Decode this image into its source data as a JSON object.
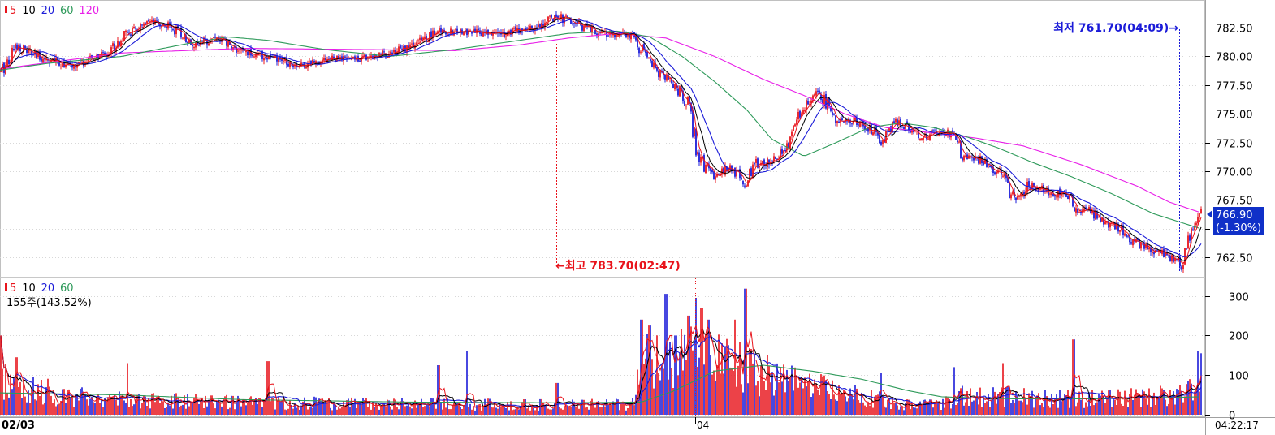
{
  "colors": {
    "up": "#e8141c",
    "down": "#1b1bd8",
    "ma5": "#e8141c",
    "ma10": "#000000",
    "ma20": "#1b1bd8",
    "ma60": "#2e9a5a",
    "ma120": "#e81ee8",
    "highlight_bg": "#1030c8",
    "grid": "#d8d8d8",
    "axis": "#a0a0a0"
  },
  "price_legend": [
    "5",
    "10",
    "20",
    "60",
    "120"
  ],
  "volume_legend": [
    "5",
    "10",
    "20",
    "60"
  ],
  "volume_info": "155주(143.52%)",
  "high_marker": "←최고 783.70(02:47)",
  "low_marker": "최저 761.70(04:09)→",
  "current_price": "766.90",
  "current_change": "(-1.30%)",
  "date_left": "02/03",
  "date_mid": "04",
  "time_right": "04:22:17",
  "chart_data": [
    {
      "type": "candlestick",
      "name": "price",
      "y_ticks": [
        "782.50",
        "780.00",
        "777.50",
        "775.00",
        "772.50",
        "770.00",
        "767.50",
        "765.00",
        "762.50"
      ],
      "ylim": [
        760.8,
        784.7
      ],
      "high": 783.7,
      "low": 761.7,
      "last": 766.9,
      "change_pct": -1.3,
      "anchors": [
        [
          0,
          778.5
        ],
        [
          20,
          781.0
        ],
        [
          45,
          780.0
        ],
        [
          90,
          779.1
        ],
        [
          130,
          780.2
        ],
        [
          155,
          781.9
        ],
        [
          185,
          782.9
        ],
        [
          210,
          782.6
        ],
        [
          240,
          781.0
        ],
        [
          265,
          781.7
        ],
        [
          290,
          780.6
        ],
        [
          330,
          779.9
        ],
        [
          370,
          779.2
        ],
        [
          400,
          779.8
        ],
        [
          440,
          779.8
        ],
        [
          480,
          780.3
        ],
        [
          510,
          781.0
        ],
        [
          540,
          782.2
        ],
        [
          580,
          782.1
        ],
        [
          620,
          782.0
        ],
        [
          660,
          782.6
        ],
        [
          685,
          783.5
        ],
        [
          710,
          782.8
        ],
        [
          740,
          782.0
        ],
        [
          780,
          781.8
        ],
        [
          795,
          780.0
        ],
        [
          810,
          778.5
        ],
        [
          830,
          777.6
        ],
        [
          848,
          775.5
        ],
        [
          862,
          771.0
        ],
        [
          880,
          769.5
        ],
        [
          900,
          770.4
        ],
        [
          918,
          768.8
        ],
        [
          930,
          770.5
        ],
        [
          950,
          771.0
        ],
        [
          968,
          771.8
        ],
        [
          980,
          774.0
        ],
        [
          1000,
          776.8
        ],
        [
          1012,
          776.5
        ],
        [
          1030,
          774.6
        ],
        [
          1055,
          774.3
        ],
        [
          1075,
          773.5
        ],
        [
          1085,
          772.5
        ],
        [
          1100,
          774.3
        ],
        [
          1120,
          773.8
        ],
        [
          1135,
          773.0
        ],
        [
          1160,
          773.5
        ],
        [
          1175,
          773.2
        ],
        [
          1185,
          771.0
        ],
        [
          1200,
          771.2
        ],
        [
          1220,
          770.5
        ],
        [
          1235,
          769.5
        ],
        [
          1250,
          767.3
        ],
        [
          1265,
          768.7
        ],
        [
          1280,
          768.5
        ],
        [
          1300,
          768.0
        ],
        [
          1310,
          768.3
        ],
        [
          1325,
          766.5
        ],
        [
          1340,
          766.6
        ],
        [
          1360,
          765.5
        ],
        [
          1380,
          765.0
        ],
        [
          1400,
          763.6
        ],
        [
          1420,
          763.0
        ],
        [
          1440,
          762.6
        ],
        [
          1455,
          762.0
        ],
        [
          1465,
          764.5
        ],
        [
          1478,
          766.9
        ]
      ],
      "ma60_anchors": [
        [
          0,
          778.8
        ],
        [
          60,
          779.4
        ],
        [
          150,
          780.0
        ],
        [
          230,
          781.1
        ],
        [
          280,
          781.7
        ],
        [
          330,
          781.4
        ],
        [
          400,
          780.6
        ],
        [
          480,
          780.0
        ],
        [
          560,
          780.6
        ],
        [
          640,
          781.4
        ],
        [
          700,
          782.0
        ],
        [
          760,
          782.2
        ],
        [
          800,
          781.7
        ],
        [
          840,
          780.0
        ],
        [
          880,
          777.8
        ],
        [
          920,
          775.3
        ],
        [
          950,
          772.8
        ],
        [
          990,
          771.3
        ],
        [
          1030,
          772.5
        ],
        [
          1070,
          773.8
        ],
        [
          1110,
          774.2
        ],
        [
          1150,
          773.8
        ],
        [
          1190,
          773.0
        ],
        [
          1230,
          772.0
        ],
        [
          1270,
          770.8
        ],
        [
          1320,
          769.5
        ],
        [
          1370,
          768.0
        ],
        [
          1420,
          766.3
        ],
        [
          1478,
          765.0
        ]
      ],
      "ma120_anchors": [
        [
          0,
          778.9
        ],
        [
          150,
          780.3
        ],
        [
          300,
          780.7
        ],
        [
          450,
          780.6
        ],
        [
          560,
          780.5
        ],
        [
          640,
          781.0
        ],
        [
          700,
          781.6
        ],
        [
          760,
          782.0
        ],
        [
          820,
          781.6
        ],
        [
          880,
          780.0
        ],
        [
          940,
          778.0
        ],
        [
          990,
          776.6
        ],
        [
          1040,
          775.0
        ],
        [
          1090,
          773.8
        ],
        [
          1140,
          773.4
        ],
        [
          1200,
          772.9
        ],
        [
          1260,
          772.2
        ],
        [
          1330,
          770.6
        ],
        [
          1400,
          768.7
        ],
        [
          1440,
          767.3
        ],
        [
          1478,
          766.4
        ]
      ]
    },
    {
      "type": "bar",
      "name": "volume",
      "y_ticks": [
        "300",
        "200",
        "100",
        "0"
      ],
      "ylim": [
        0,
        340
      ],
      "base_anchors": [
        [
          0,
          100
        ],
        [
          30,
          80
        ],
        [
          80,
          55
        ],
        [
          150,
          45
        ],
        [
          300,
          35
        ],
        [
          500,
          30
        ],
        [
          700,
          28
        ],
        [
          780,
          30
        ],
        [
          790,
          150
        ],
        [
          820,
          160
        ],
        [
          860,
          170
        ],
        [
          900,
          140
        ],
        [
          940,
          110
        ],
        [
          1000,
          80
        ],
        [
          1060,
          50
        ],
        [
          1120,
          30
        ],
        [
          1160,
          28
        ],
        [
          1180,
          55
        ],
        [
          1250,
          50
        ],
        [
          1350,
          45
        ],
        [
          1420,
          50
        ],
        [
          1478,
          70
        ]
      ],
      "spikes": [
        [
          0,
          200
        ],
        [
          20,
          145
        ],
        [
          157,
          130
        ],
        [
          330,
          135
        ],
        [
          540,
          125
        ],
        [
          575,
          160
        ],
        [
          686,
          80
        ],
        [
          790,
          240
        ],
        [
          800,
          225
        ],
        [
          820,
          305
        ],
        [
          832,
          200
        ],
        [
          848,
          250
        ],
        [
          857,
          295
        ],
        [
          864,
          270
        ],
        [
          872,
          240
        ],
        [
          905,
          240
        ],
        [
          918,
          318
        ],
        [
          945,
          150
        ],
        [
          1085,
          105
        ],
        [
          1175,
          120
        ],
        [
          1235,
          130
        ],
        [
          1322,
          190
        ],
        [
          1475,
          160
        ],
        [
          1480,
          155
        ]
      ],
      "ma60_anchors": [
        [
          0,
          55
        ],
        [
          150,
          50
        ],
        [
          300,
          38
        ],
        [
          500,
          32
        ],
        [
          700,
          30
        ],
        [
          790,
          32
        ],
        [
          830,
          60
        ],
        [
          880,
          110
        ],
        [
          940,
          125
        ],
        [
          1000,
          110
        ],
        [
          1060,
          90
        ],
        [
          1120,
          60
        ],
        [
          1160,
          45
        ],
        [
          1250,
          40
        ],
        [
          1350,
          40
        ],
        [
          1478,
          45
        ]
      ]
    }
  ]
}
